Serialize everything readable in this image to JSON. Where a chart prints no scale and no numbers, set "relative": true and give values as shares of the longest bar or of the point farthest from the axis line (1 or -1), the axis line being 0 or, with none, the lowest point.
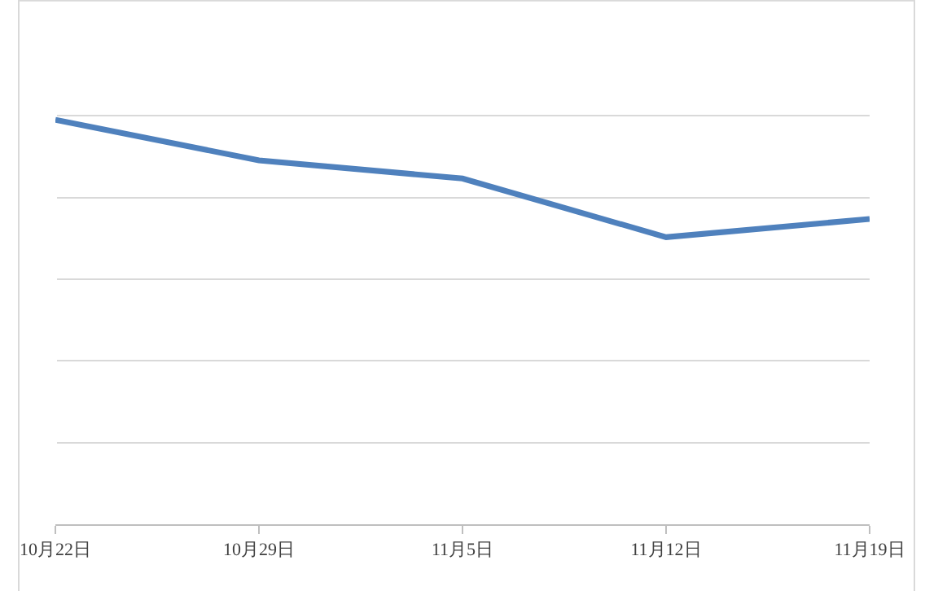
{
  "chart_data": {
    "type": "line",
    "relative": true,
    "categories": [
      "10月22日",
      "10月29日",
      "11月5日",
      "11月12日",
      "11月19日"
    ],
    "series": [
      {
        "color": "#4f81bd",
        "values": [
          1,
          0.9,
          0.855,
          0.71,
          0.755
        ]
      }
    ],
    "grid": "y",
    "legend": false,
    "marker": "none",
    "line_style": "solid"
  }
}
